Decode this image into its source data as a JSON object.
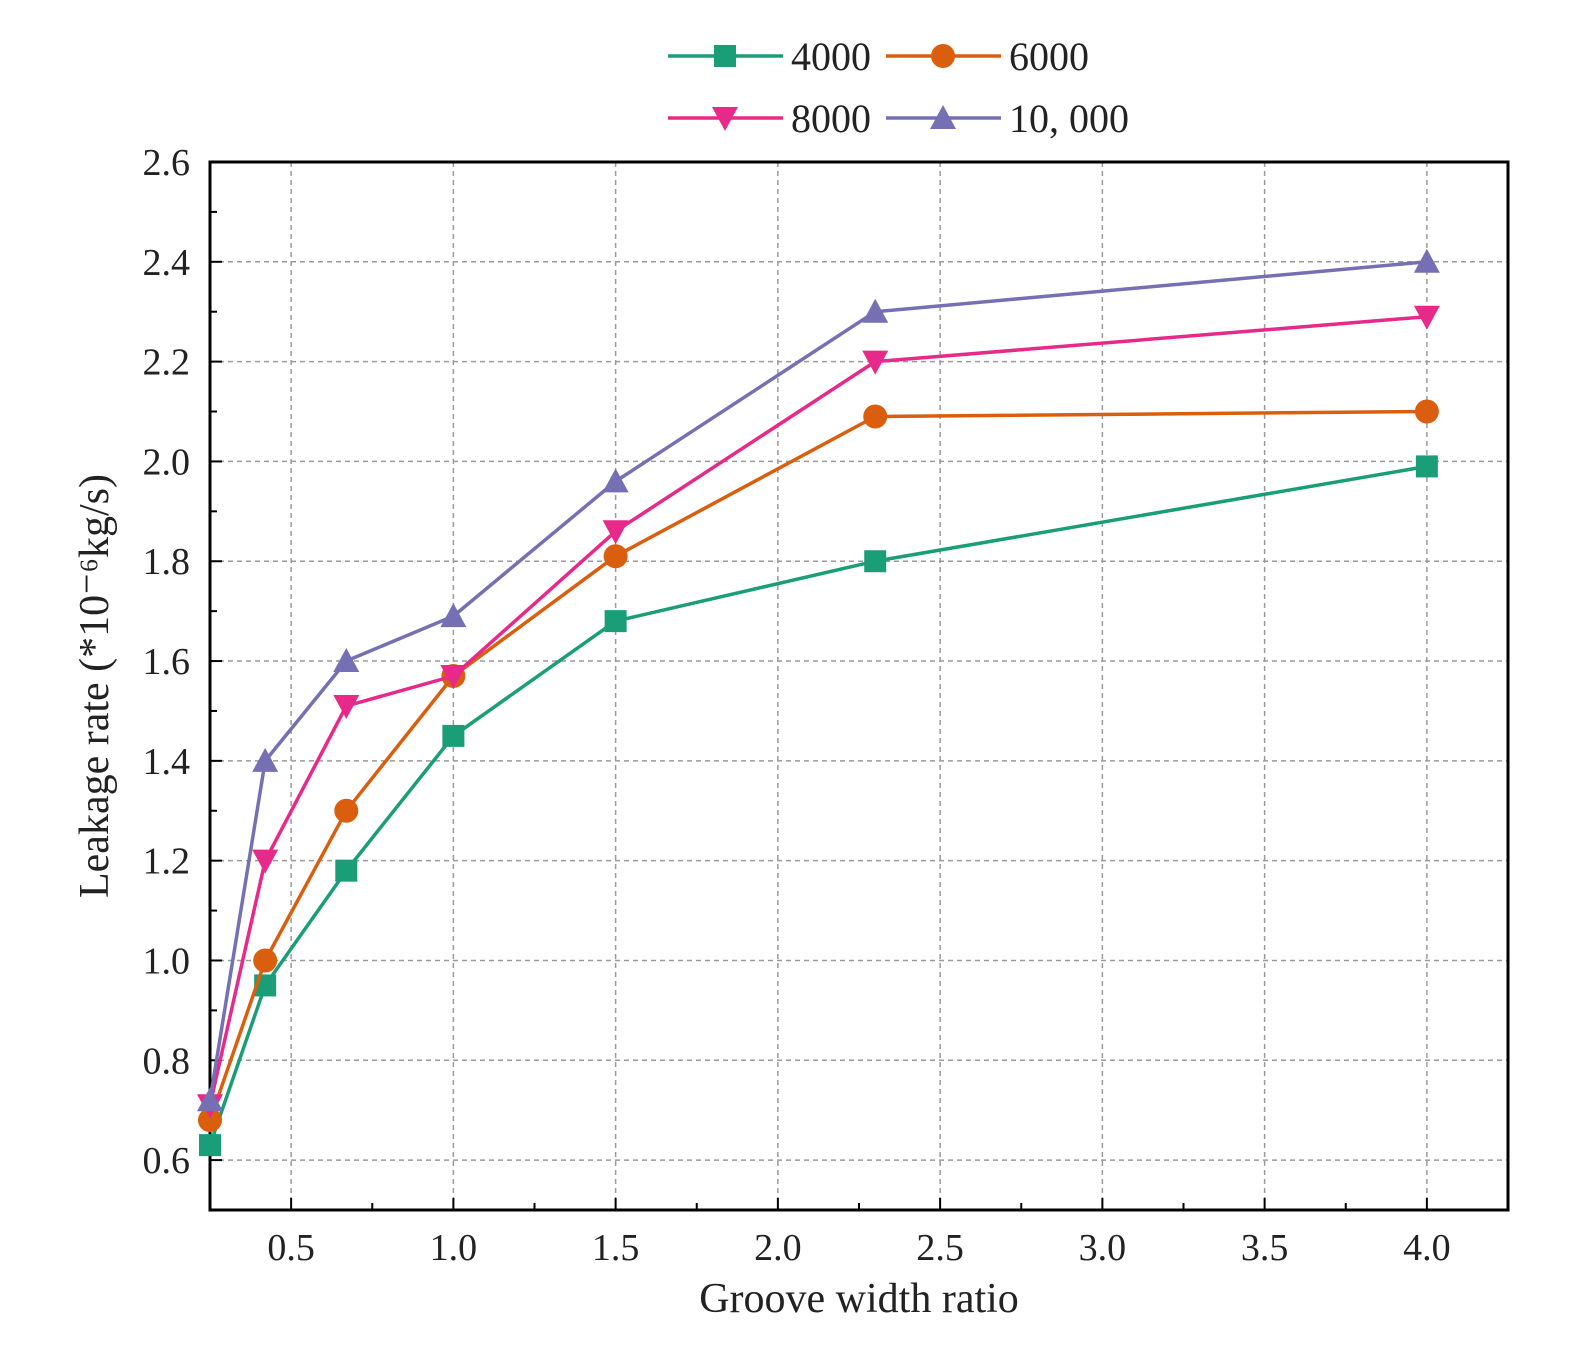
{
  "chart_data": {
    "type": "line",
    "title": "",
    "xlabel": "Groove width ratio",
    "ylabel": "Leakage rate (*10⁻⁶kg/s)",
    "xlim": [
      0.25,
      4.25
    ],
    "ylim": [
      0.5,
      2.6
    ],
    "xticks": [
      "0.5",
      "1.0",
      "1.5",
      "2.0",
      "2.5",
      "3.0",
      "3.5",
      "4.0"
    ],
    "yticks": [
      "0.6",
      "0.8",
      "1.0",
      "1.2",
      "1.4",
      "1.6",
      "1.8",
      "2.0",
      "2.2",
      "2.4",
      "2.6"
    ],
    "grid": true,
    "legend_position": "top",
    "x": [
      0.25,
      0.42,
      0.67,
      1.0,
      1.5,
      2.3,
      4.0
    ],
    "series": [
      {
        "name": "4000",
        "color": "#1a9e77",
        "marker": "square",
        "values": [
          0.63,
          0.95,
          1.18,
          1.45,
          1.68,
          1.8,
          1.99
        ]
      },
      {
        "name": "6000",
        "color": "#d95f0e",
        "marker": "circle",
        "values": [
          0.68,
          1.0,
          1.3,
          1.57,
          1.81,
          2.09,
          2.1
        ]
      },
      {
        "name": "8000",
        "color": "#e7298a",
        "marker": "triangle-down",
        "values": [
          0.71,
          1.2,
          1.51,
          1.57,
          1.86,
          2.2,
          2.29
        ]
      },
      {
        "name": "10, 000",
        "color": "#7570b3",
        "marker": "triangle-up",
        "values": [
          0.72,
          1.4,
          1.6,
          1.69,
          1.96,
          2.3,
          2.4
        ]
      }
    ]
  }
}
